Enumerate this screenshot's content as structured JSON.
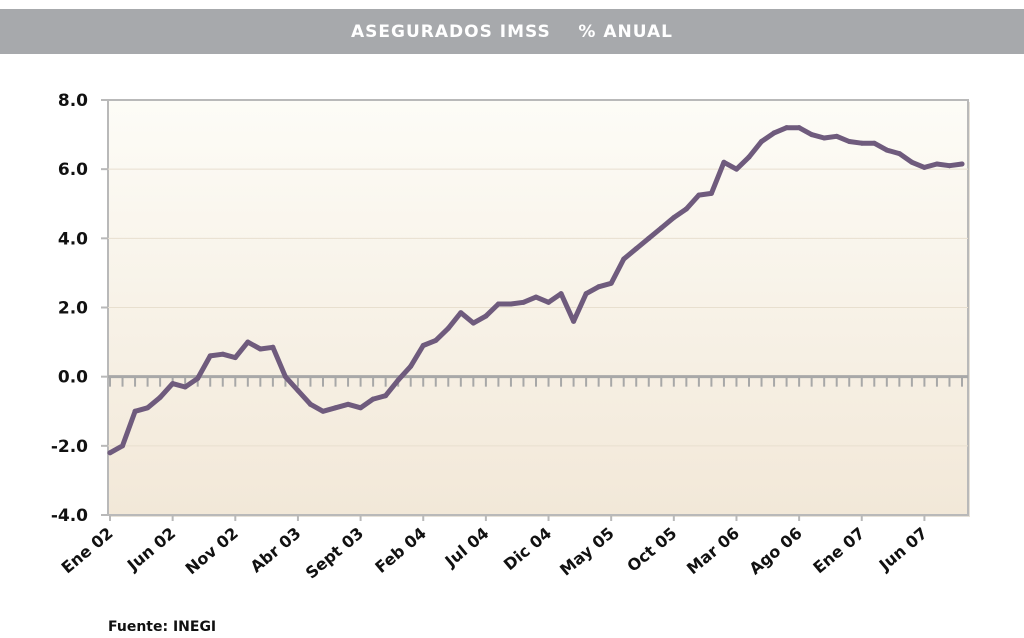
{
  "chart_data": {
    "type": "line",
    "title": "ASEGURADOS IMSS    % ANUAL",
    "source": "Fuente: INEGI",
    "ylim": [
      -4.0,
      8.0
    ],
    "yticks": [
      "8.0",
      "6.0",
      "4.0",
      "2.0",
      "0.0",
      "-2.0",
      "-4.0"
    ],
    "ytick_values": [
      8,
      6,
      4,
      2,
      0,
      -2,
      -4
    ],
    "x_tick_labels": [
      "Ene 02",
      "Jun 02",
      "Nov 02",
      "Abr 03",
      "Sept 03",
      "Feb 04",
      "Jul 04",
      "Dic 04",
      "May 05",
      "Oct 05",
      "Mar 06",
      "Ago 06",
      "Ene 07",
      "Jun 07"
    ],
    "x_tick_index": [
      0,
      5,
      10,
      15,
      20,
      25,
      30,
      35,
      40,
      45,
      50,
      55,
      60,
      65
    ],
    "grid": true,
    "colors": {
      "line": "#6f5b7d",
      "plot_top": "#fdfcf7",
      "plot_bottom": "#f2e8d8",
      "frame": "#b9b9b9",
      "tick": "#a8a8a8",
      "title_bg": "#a7a9ac"
    },
    "series": [
      {
        "values": [
          -2.2,
          -2.0,
          -1.0,
          -0.9,
          -0.6,
          -0.2,
          -0.3,
          -0.05,
          0.6,
          0.65,
          0.55,
          1.0,
          0.8,
          0.85,
          0.0,
          -0.4,
          -0.8,
          -1.0,
          -0.9,
          -0.8,
          -0.9,
          -0.65,
          -0.55,
          -0.1,
          0.3,
          0.9,
          1.05,
          1.4,
          1.85,
          1.55,
          1.75,
          2.1,
          2.1,
          2.15,
          2.3,
          2.15,
          2.4,
          1.6,
          2.4,
          2.6,
          2.7,
          3.4,
          3.7,
          4.0,
          4.3,
          4.6,
          4.85,
          5.25,
          5.3,
          6.2,
          6.0,
          6.35,
          6.8,
          7.05,
          7.2,
          7.2,
          7.0,
          6.9,
          6.95,
          6.8,
          6.75,
          6.75,
          6.55,
          6.45,
          6.2,
          6.05,
          6.15,
          6.1,
          6.15
        ]
      }
    ]
  }
}
